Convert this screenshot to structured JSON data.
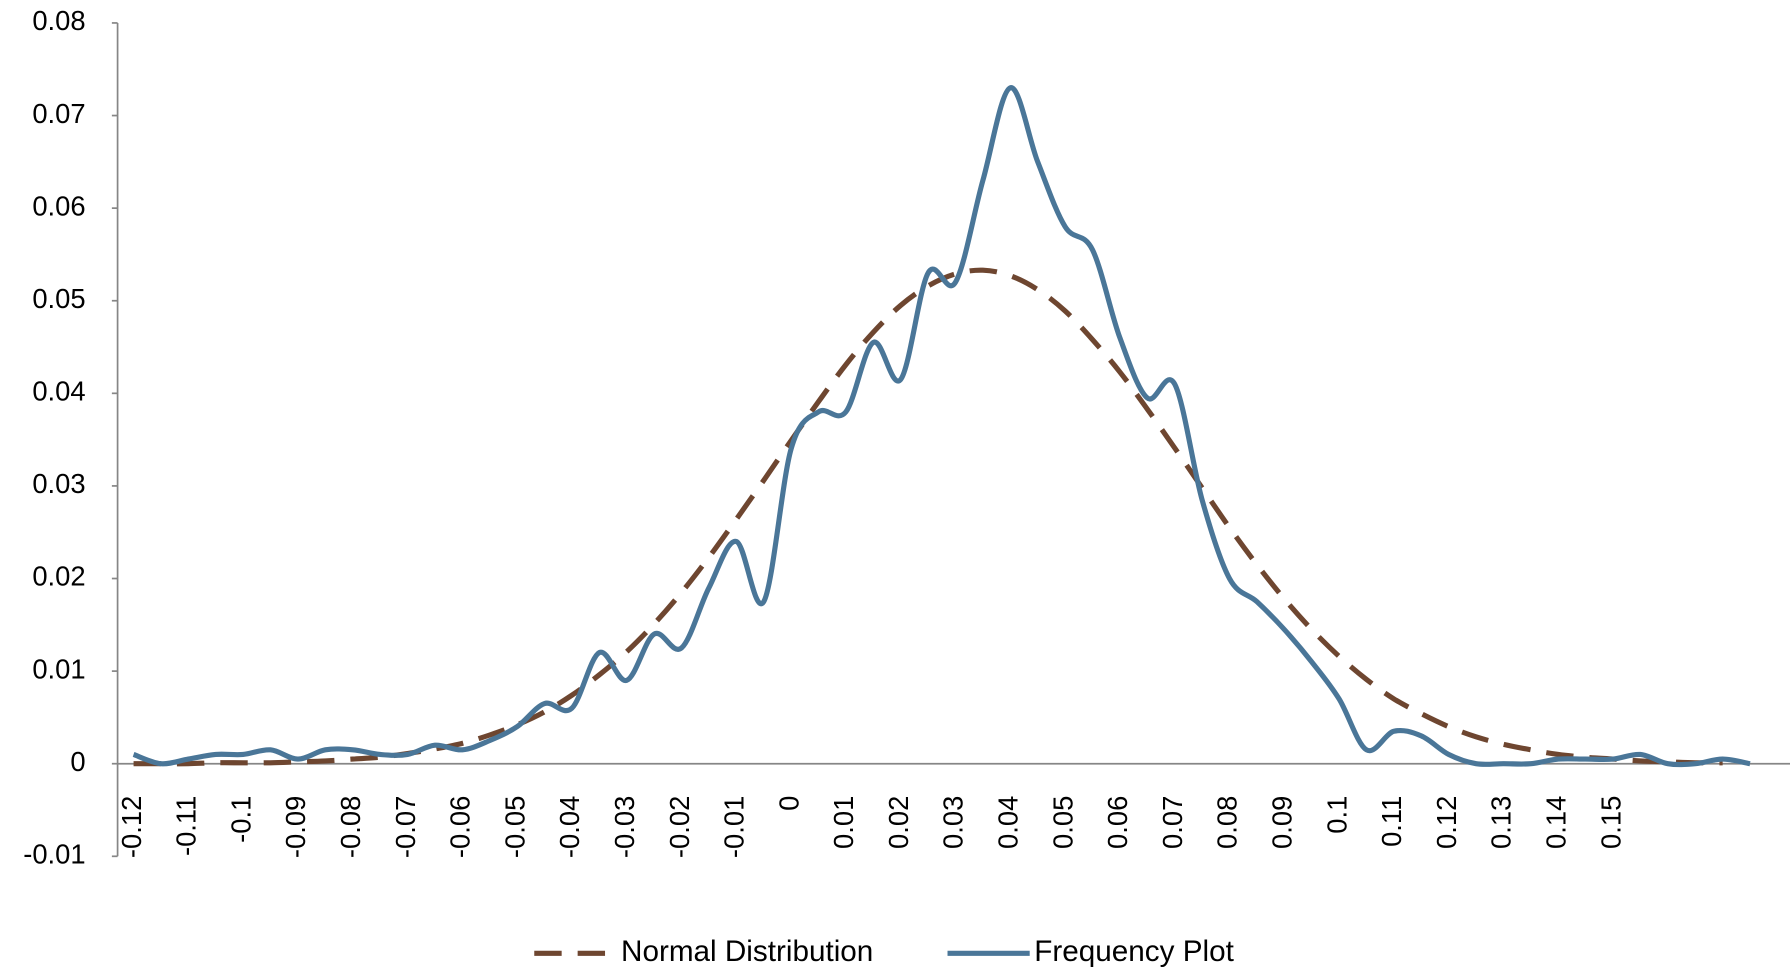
{
  "chart_data": {
    "type": "line",
    "categories": [
      "-0.12",
      null,
      "-0.11",
      null,
      "-0.1",
      null,
      "-0.09",
      null,
      "-0.08",
      null,
      "-0.07",
      null,
      "-0.06",
      null,
      "-0.05",
      null,
      "-0.04",
      null,
      "-0.03",
      null,
      "-0.02",
      null,
      "-0.01",
      null,
      "0",
      null,
      "0.01",
      null,
      "0.02",
      null,
      "0.03",
      null,
      "0.04",
      null,
      "0.05",
      null,
      "0.06",
      null,
      "0.07",
      null,
      "0.08",
      null,
      "0.09",
      null,
      "0.1",
      null,
      "0.11",
      null,
      "0.12",
      null,
      "0.13",
      null,
      "0.14",
      null,
      "0.15",
      null,
      null,
      null,
      null,
      null
    ],
    "series": [
      {
        "name": "Normal Distribution",
        "color": "#6e4630",
        "dashed": true,
        "values": [
          0,
          0,
          0,
          0.0001,
          0.0001,
          0.0001,
          0.0002,
          0.0003,
          0.0005,
          0.0007,
          0.0011,
          0.0016,
          0.0022,
          0.0031,
          0.0042,
          0.0056,
          0.0074,
          0.0096,
          0.0121,
          0.0151,
          0.0185,
          0.0223,
          0.0264,
          0.0306,
          0.0349,
          0.0391,
          0.0431,
          0.0466,
          0.0495,
          0.0516,
          0.0529,
          0.0533,
          0.0527,
          0.0512,
          0.0489,
          0.0458,
          0.0423,
          0.0383,
          0.0341,
          0.0298,
          0.0255,
          0.0215,
          0.0178,
          0.0145,
          0.0116,
          0.0091,
          0.007,
          0.0054,
          0.004,
          0.0029,
          0.0021,
          0.0015,
          0.001,
          0.0007,
          0.0005,
          0.0003,
          0.0002,
          0.0001,
          0.0001,
          null
        ]
      },
      {
        "name": "Frequency Plot",
        "color": "#4a7698",
        "dashed": false,
        "values": [
          0.001,
          0,
          0.0005,
          0.001,
          0.001,
          0.0015,
          0.0005,
          0.0015,
          0.0015,
          0.001,
          0.001,
          0.002,
          0.0015,
          0.0025,
          0.004,
          0.0065,
          0.006,
          0.012,
          0.009,
          0.014,
          0.0125,
          0.019,
          0.024,
          0.0175,
          0.034,
          0.038,
          0.038,
          0.0455,
          0.0415,
          0.053,
          0.052,
          0.063,
          0.073,
          0.065,
          0.058,
          0.0555,
          0.046,
          0.0395,
          0.041,
          0.0285,
          0.02,
          0.0175,
          0.0145,
          0.011,
          0.007,
          0.0015,
          0.0035,
          0.003,
          0.001,
          0,
          0,
          0,
          0.0005,
          0.0005,
          0.0005,
          0.001,
          0,
          0,
          0.0005,
          0
        ]
      }
    ],
    "ylim": [
      -0.01,
      0.08
    ],
    "yticks": [
      -0.01,
      0,
      0.01,
      0.02,
      0.03,
      0.04,
      0.05,
      0.06,
      0.07,
      0.08
    ],
    "grid": false,
    "legend": "bottom"
  }
}
